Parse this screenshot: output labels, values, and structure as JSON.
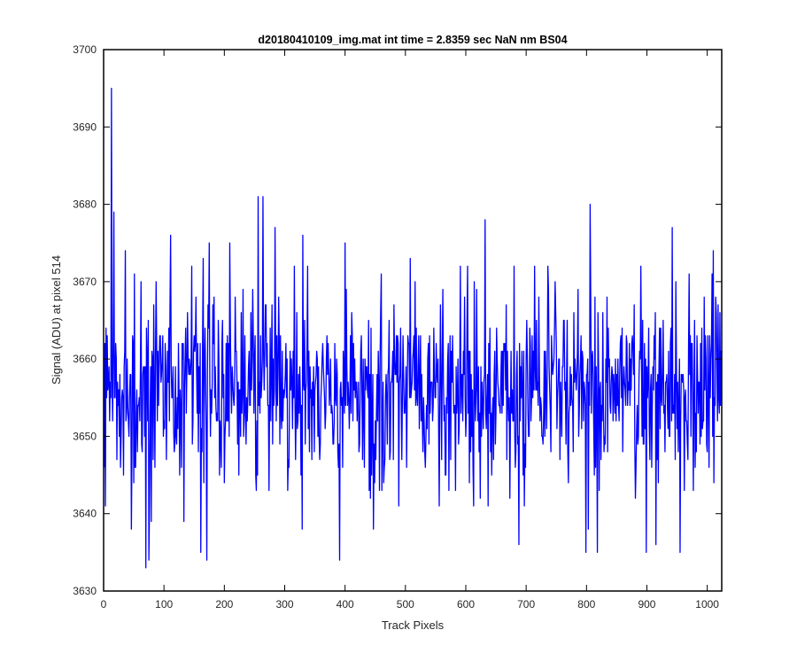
{
  "chart_data": {
    "type": "line",
    "title": "d20180410109_img.mat int time = 2.8359 sec  NaN nm BS04",
    "xlabel": "Track Pixels",
    "ylabel": "Signal (ADU) at pixel 514",
    "xlim": [
      0,
      1024
    ],
    "ylim": [
      3630,
      3700
    ],
    "xticks": [
      "0",
      "100",
      "200",
      "300",
      "400",
      "500",
      "600",
      "700",
      "800",
      "900",
      "1000"
    ],
    "yticks": [
      "3630",
      "3640",
      "3650",
      "3660",
      "3670",
      "3680",
      "3690",
      "3700"
    ],
    "grid": false,
    "box": true,
    "series": [
      {
        "color": "#0000ff",
        "x_start": 1,
        "x_step": 1,
        "count": 1024,
        "mean_approx": 3656,
        "noise_sd_approx": 6,
        "notable_points": [
          {
            "x": 3,
            "y": 3641
          },
          {
            "x": 13,
            "y": 3695
          },
          {
            "x": 17,
            "y": 3679
          },
          {
            "x": 36,
            "y": 3674
          },
          {
            "x": 51,
            "y": 3671
          },
          {
            "x": 62,
            "y": 3670
          },
          {
            "x": 70,
            "y": 3633
          },
          {
            "x": 75,
            "y": 3634
          },
          {
            "x": 79,
            "y": 3639
          },
          {
            "x": 111,
            "y": 3676
          },
          {
            "x": 161,
            "y": 3635
          },
          {
            "x": 165,
            "y": 3673
          },
          {
            "x": 171,
            "y": 3634
          },
          {
            "x": 175,
            "y": 3637
          },
          {
            "x": 175,
            "y": 3675
          },
          {
            "x": 209,
            "y": 3675
          },
          {
            "x": 256,
            "y": 3681
          },
          {
            "x": 264,
            "y": 3681
          },
          {
            "x": 274,
            "y": 3643
          },
          {
            "x": 284,
            "y": 3677
          },
          {
            "x": 330,
            "y": 3676
          },
          {
            "x": 391,
            "y": 3634
          },
          {
            "x": 400,
            "y": 3675
          },
          {
            "x": 460,
            "y": 3671
          },
          {
            "x": 508,
            "y": 3673
          },
          {
            "x": 632,
            "y": 3678
          },
          {
            "x": 688,
            "y": 3636
          },
          {
            "x": 736,
            "y": 3672
          },
          {
            "x": 799,
            "y": 3635
          },
          {
            "x": 806,
            "y": 3680
          },
          {
            "x": 818,
            "y": 3635
          },
          {
            "x": 890,
            "y": 3672
          },
          {
            "x": 899,
            "y": 3635
          },
          {
            "x": 915,
            "y": 3636
          },
          {
            "x": 942,
            "y": 3677
          },
          {
            "x": 955,
            "y": 3635
          },
          {
            "x": 970,
            "y": 3671
          },
          {
            "x": 1010,
            "y": 3674
          }
        ]
      }
    ]
  }
}
